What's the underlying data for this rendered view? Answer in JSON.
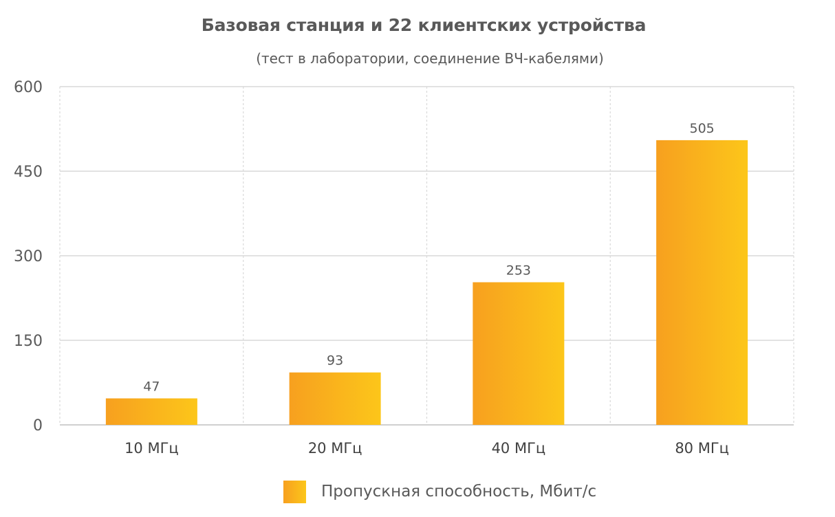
{
  "chart_data": {
    "type": "bar",
    "title": "Базовая станция и 22 клиентских устройства",
    "subtitle": "(тест в лаборатории, соединение ВЧ-кабелями)",
    "categories": [
      "10 МГц",
      "20 МГц",
      "40 МГц",
      "80 МГц"
    ],
    "series": [
      {
        "name": "Пропускная способность, Мбит/с",
        "values": [
          47,
          93,
          253,
          505
        ],
        "color_start": "#f7a01f",
        "color_end": "#fcc61a"
      }
    ],
    "yticks": [
      0,
      150,
      300,
      450,
      600
    ],
    "ylim": [
      0,
      600
    ],
    "xlabel": "",
    "ylabel": "",
    "grid": true,
    "data_labels": true,
    "legend_position": "bottom"
  }
}
